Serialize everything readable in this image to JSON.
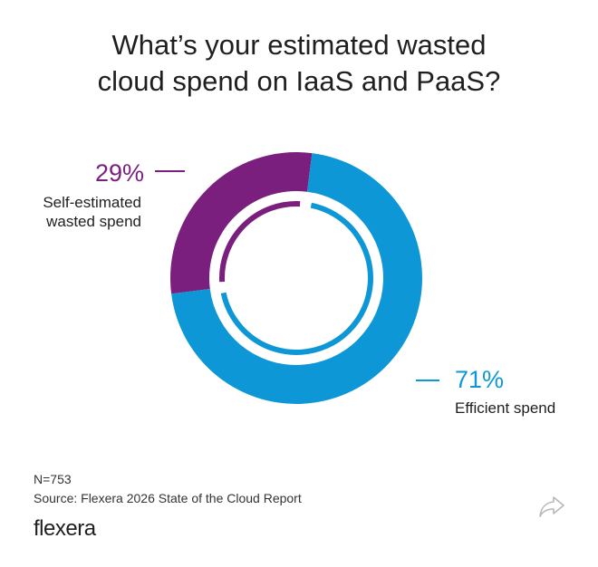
{
  "title_lines": [
    "What’s your estimated wasted",
    "cloud spend on IaaS and PaaS?"
  ],
  "chart_data": {
    "type": "pie",
    "donut": true,
    "title": "What’s your estimated wasted cloud spend on IaaS and PaaS?",
    "slices": [
      {
        "label": "Self-estimated wasted spend",
        "label_lines": [
          "Self-estimated",
          "wasted spend"
        ],
        "value": 29,
        "value_label": "29%",
        "color": "#7a1f7e"
      },
      {
        "label": "Efficient spend",
        "label_lines": [
          "Efficient spend"
        ],
        "value": 71,
        "value_label": "71%",
        "color": "#0e97d6"
      }
    ]
  },
  "footer": {
    "sample": "N=753",
    "source": "Source: Flexera 2026 State of the Cloud Report",
    "brand": "flexera"
  },
  "icons": {
    "share": "share-arrow-icon"
  }
}
